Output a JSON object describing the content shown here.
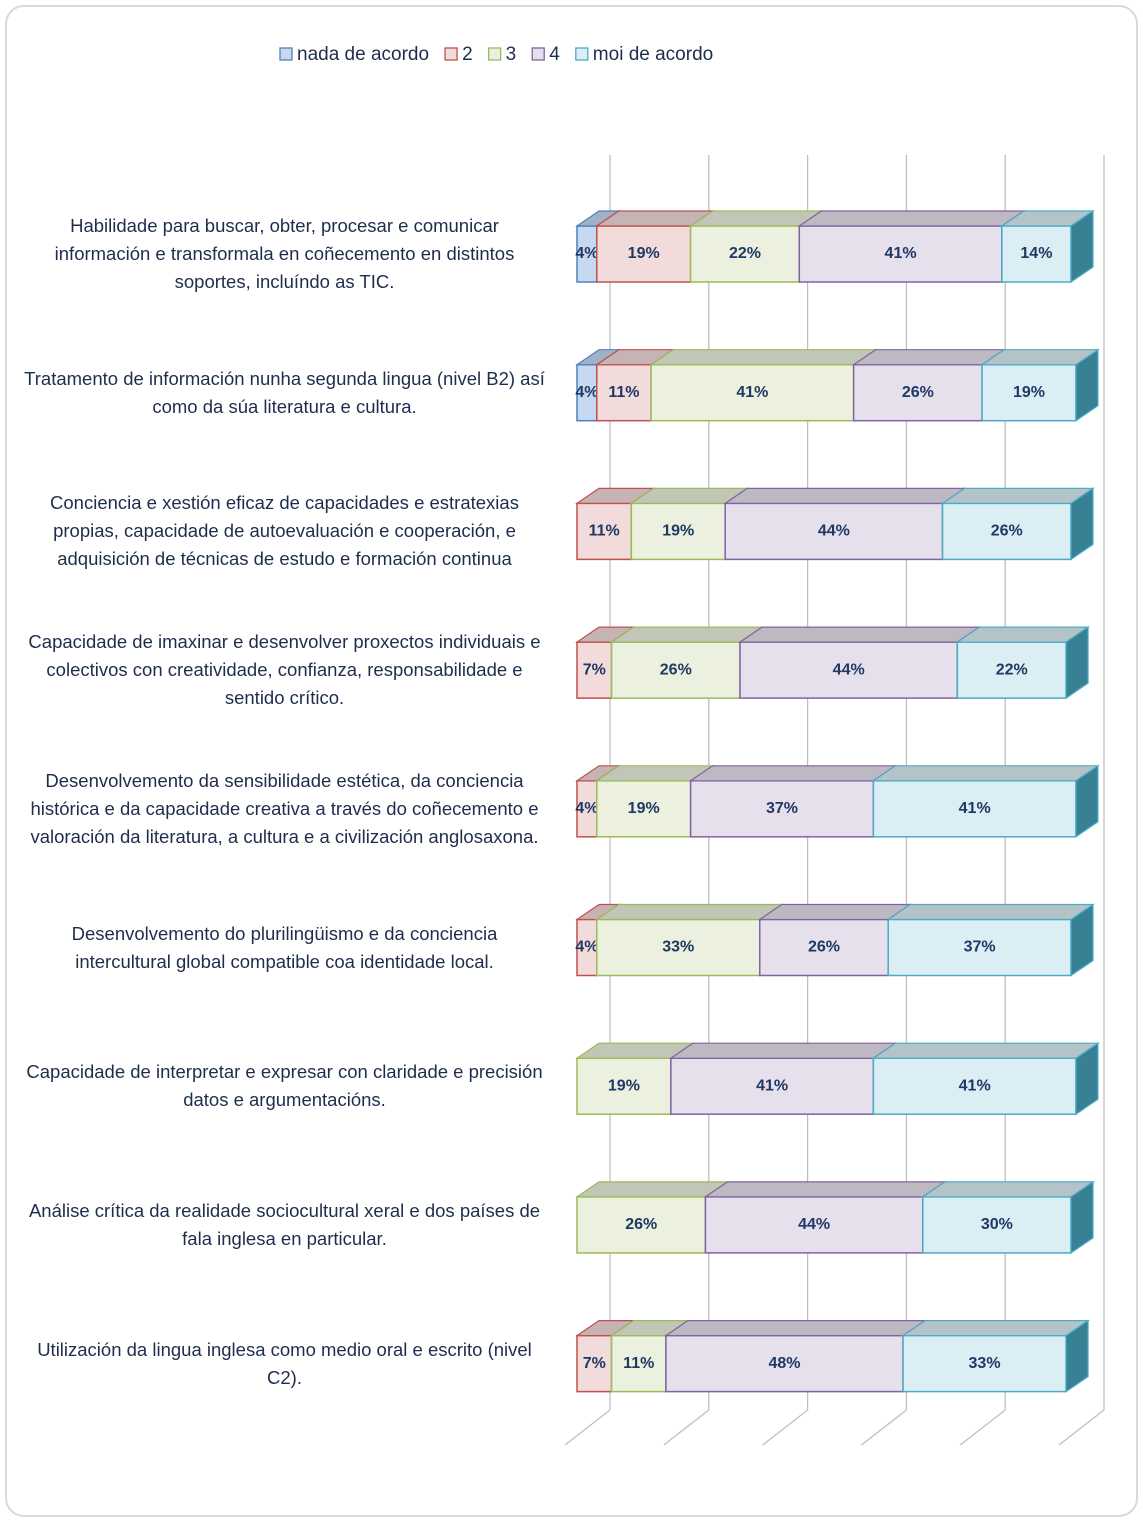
{
  "chart_data": {
    "type": "stacked_bar_3d",
    "orientation": "horizontal",
    "categories": [
      "Habilidade para buscar, obter, procesar e comunicar información e transformala en coñecemento en distintos soportes, incluíndo as TIC.",
      "Tratamento de información nunha segunda lingua (nivel B2) así como da súa literatura e cultura.",
      "Conciencia e xestión eficaz de capacidades e estratexias propias, capacidade de autoevaluación e cooperación, e adquisición de técnicas de estudo e formación continua",
      "Capacidade de imaxinar e desenvolver proxectos individuais e colectivos con creatividade, confianza, responsabilidade e sentido crítico.",
      "Desenvolvemento da sensibilidade estética, da conciencia histórica e da capacidade creativa a través do coñecemento e valoración da literatura, a cultura e a civilización anglosaxona.",
      "Desenvolvemento do plurilingüismo e da conciencia intercultural global compatible coa identidade local.",
      "Capacidade de interpretar e expresar con claridade e precisión datos e argumentacións.",
      "Análise crítica da realidade sociocultural xeral e dos países de fala inglesa en particular.",
      "Utilización da lingua inglesa como medio oral e escrito (nivel C2)."
    ],
    "series": [
      {
        "name": "nada de acordo",
        "color": "#c6d9f1",
        "edge": "#4f81bd",
        "values": [
          4,
          4,
          0,
          0,
          0,
          0,
          0,
          0,
          0
        ],
        "value_labels": [
          "4%",
          "4%",
          null,
          null,
          null,
          null,
          null,
          null,
          null
        ]
      },
      {
        "name": "2",
        "color": "#f2dcdb",
        "edge": "#c0504d",
        "values": [
          19,
          11,
          11,
          7,
          4,
          4,
          0,
          0,
          7
        ],
        "value_labels": [
          "19%",
          "11%",
          "11%",
          "7%",
          "4%",
          "4%",
          null,
          null,
          "7%"
        ]
      },
      {
        "name": "3",
        "color": "#ebf1de",
        "edge": "#9bbb59",
        "values": [
          22,
          41,
          19,
          26,
          19,
          33,
          19,
          26,
          11
        ],
        "value_labels": [
          "22%",
          "41%",
          "19%",
          "26%",
          "19%",
          "33%",
          "19%",
          "26%",
          "11%"
        ]
      },
      {
        "name": "4",
        "color": "#e6e0ec",
        "edge": "#8064a2",
        "values": [
          41,
          26,
          44,
          44,
          37,
          26,
          41,
          44,
          48
        ],
        "value_labels": [
          "41%",
          "26%",
          "44%",
          "44%",
          "37%",
          "26%",
          "41%",
          "44%",
          "48%"
        ]
      },
      {
        "name": "moi de acordo",
        "color": "#dbeef4",
        "edge": "#4bacc6",
        "values": [
          14,
          19,
          26,
          22,
          41,
          37,
          41,
          30,
          33
        ],
        "value_labels": [
          "14%",
          "19%",
          "26%",
          "22%",
          "41%",
          "37%",
          "41%",
          "30%",
          "33%"
        ]
      }
    ],
    "xlim": [
      0,
      100
    ],
    "xticks": [
      0,
      20,
      40,
      60,
      80,
      100
    ],
    "grid": true,
    "legend": "top"
  }
}
